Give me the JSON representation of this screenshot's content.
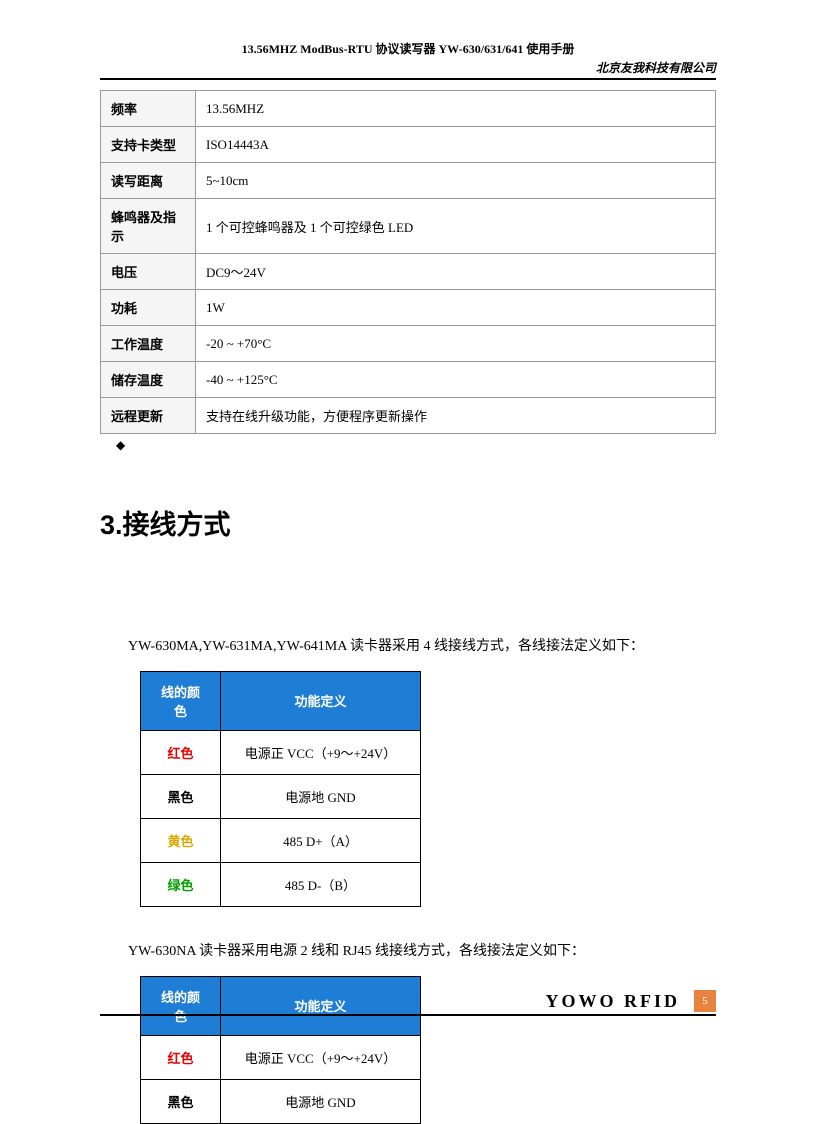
{
  "header": {
    "title": "13.56MHZ ModBus-RTU 协议读写器 YW-630/631/641 使用手册",
    "company": "北京友我科技有限公司"
  },
  "specTable": {
    "rows": [
      {
        "label": "频率",
        "value": "13.56MHZ"
      },
      {
        "label": "支持卡类型",
        "value": "ISO14443A"
      },
      {
        "label": "读写距离",
        "value": "5~10cm"
      },
      {
        "label": "蜂鸣器及指示",
        "value": "1 个可控蜂鸣器及 1 个可控绿色 LED"
      },
      {
        "label": "电压",
        "value": "DC9～24V"
      },
      {
        "label": "功耗",
        "value": "1W"
      },
      {
        "label": "工作温度",
        "value": "-20 ~ +70°C"
      },
      {
        "label": "储存温度",
        "value": "-40 ~ +125°C"
      },
      {
        "label": "远程更新",
        "value": "支持在线升级功能，方便程序更新操作"
      }
    ]
  },
  "sectionTitle": "3.接线方式",
  "paragraph1": "YW-630MA,YW-631MA,YW-641MA 读卡器采用 4 线接线方式，各线接法定义如下：",
  "wireTable1": {
    "headers": [
      "线的颜色",
      "功能定义"
    ],
    "rows": [
      {
        "color": "红色",
        "colorClass": "color-red",
        "func": "电源正 VCC（+9～+24V）"
      },
      {
        "color": "黑色",
        "colorClass": "color-black",
        "func": "电源地 GND"
      },
      {
        "color": "黄色",
        "colorClass": "color-yellow",
        "func": "485 D+（A）"
      },
      {
        "color": "绿色",
        "colorClass": "color-green",
        "func": "485 D-（B）"
      }
    ]
  },
  "paragraph2": "YW-630NA 读卡器采用电源 2 线和 RJ45 线接线方式，各线接法定义如下：",
  "wireTable2": {
    "headers": [
      "线的颜色",
      "功能定义"
    ],
    "rows": [
      {
        "color": "红色",
        "colorClass": "color-red",
        "func": "电源正 VCC（+9～+24V）"
      },
      {
        "color": "黑色",
        "colorClass": "color-black",
        "func": "电源地 GND"
      }
    ]
  },
  "footer": {
    "brand": "YOWO  RFID",
    "page": "5"
  }
}
